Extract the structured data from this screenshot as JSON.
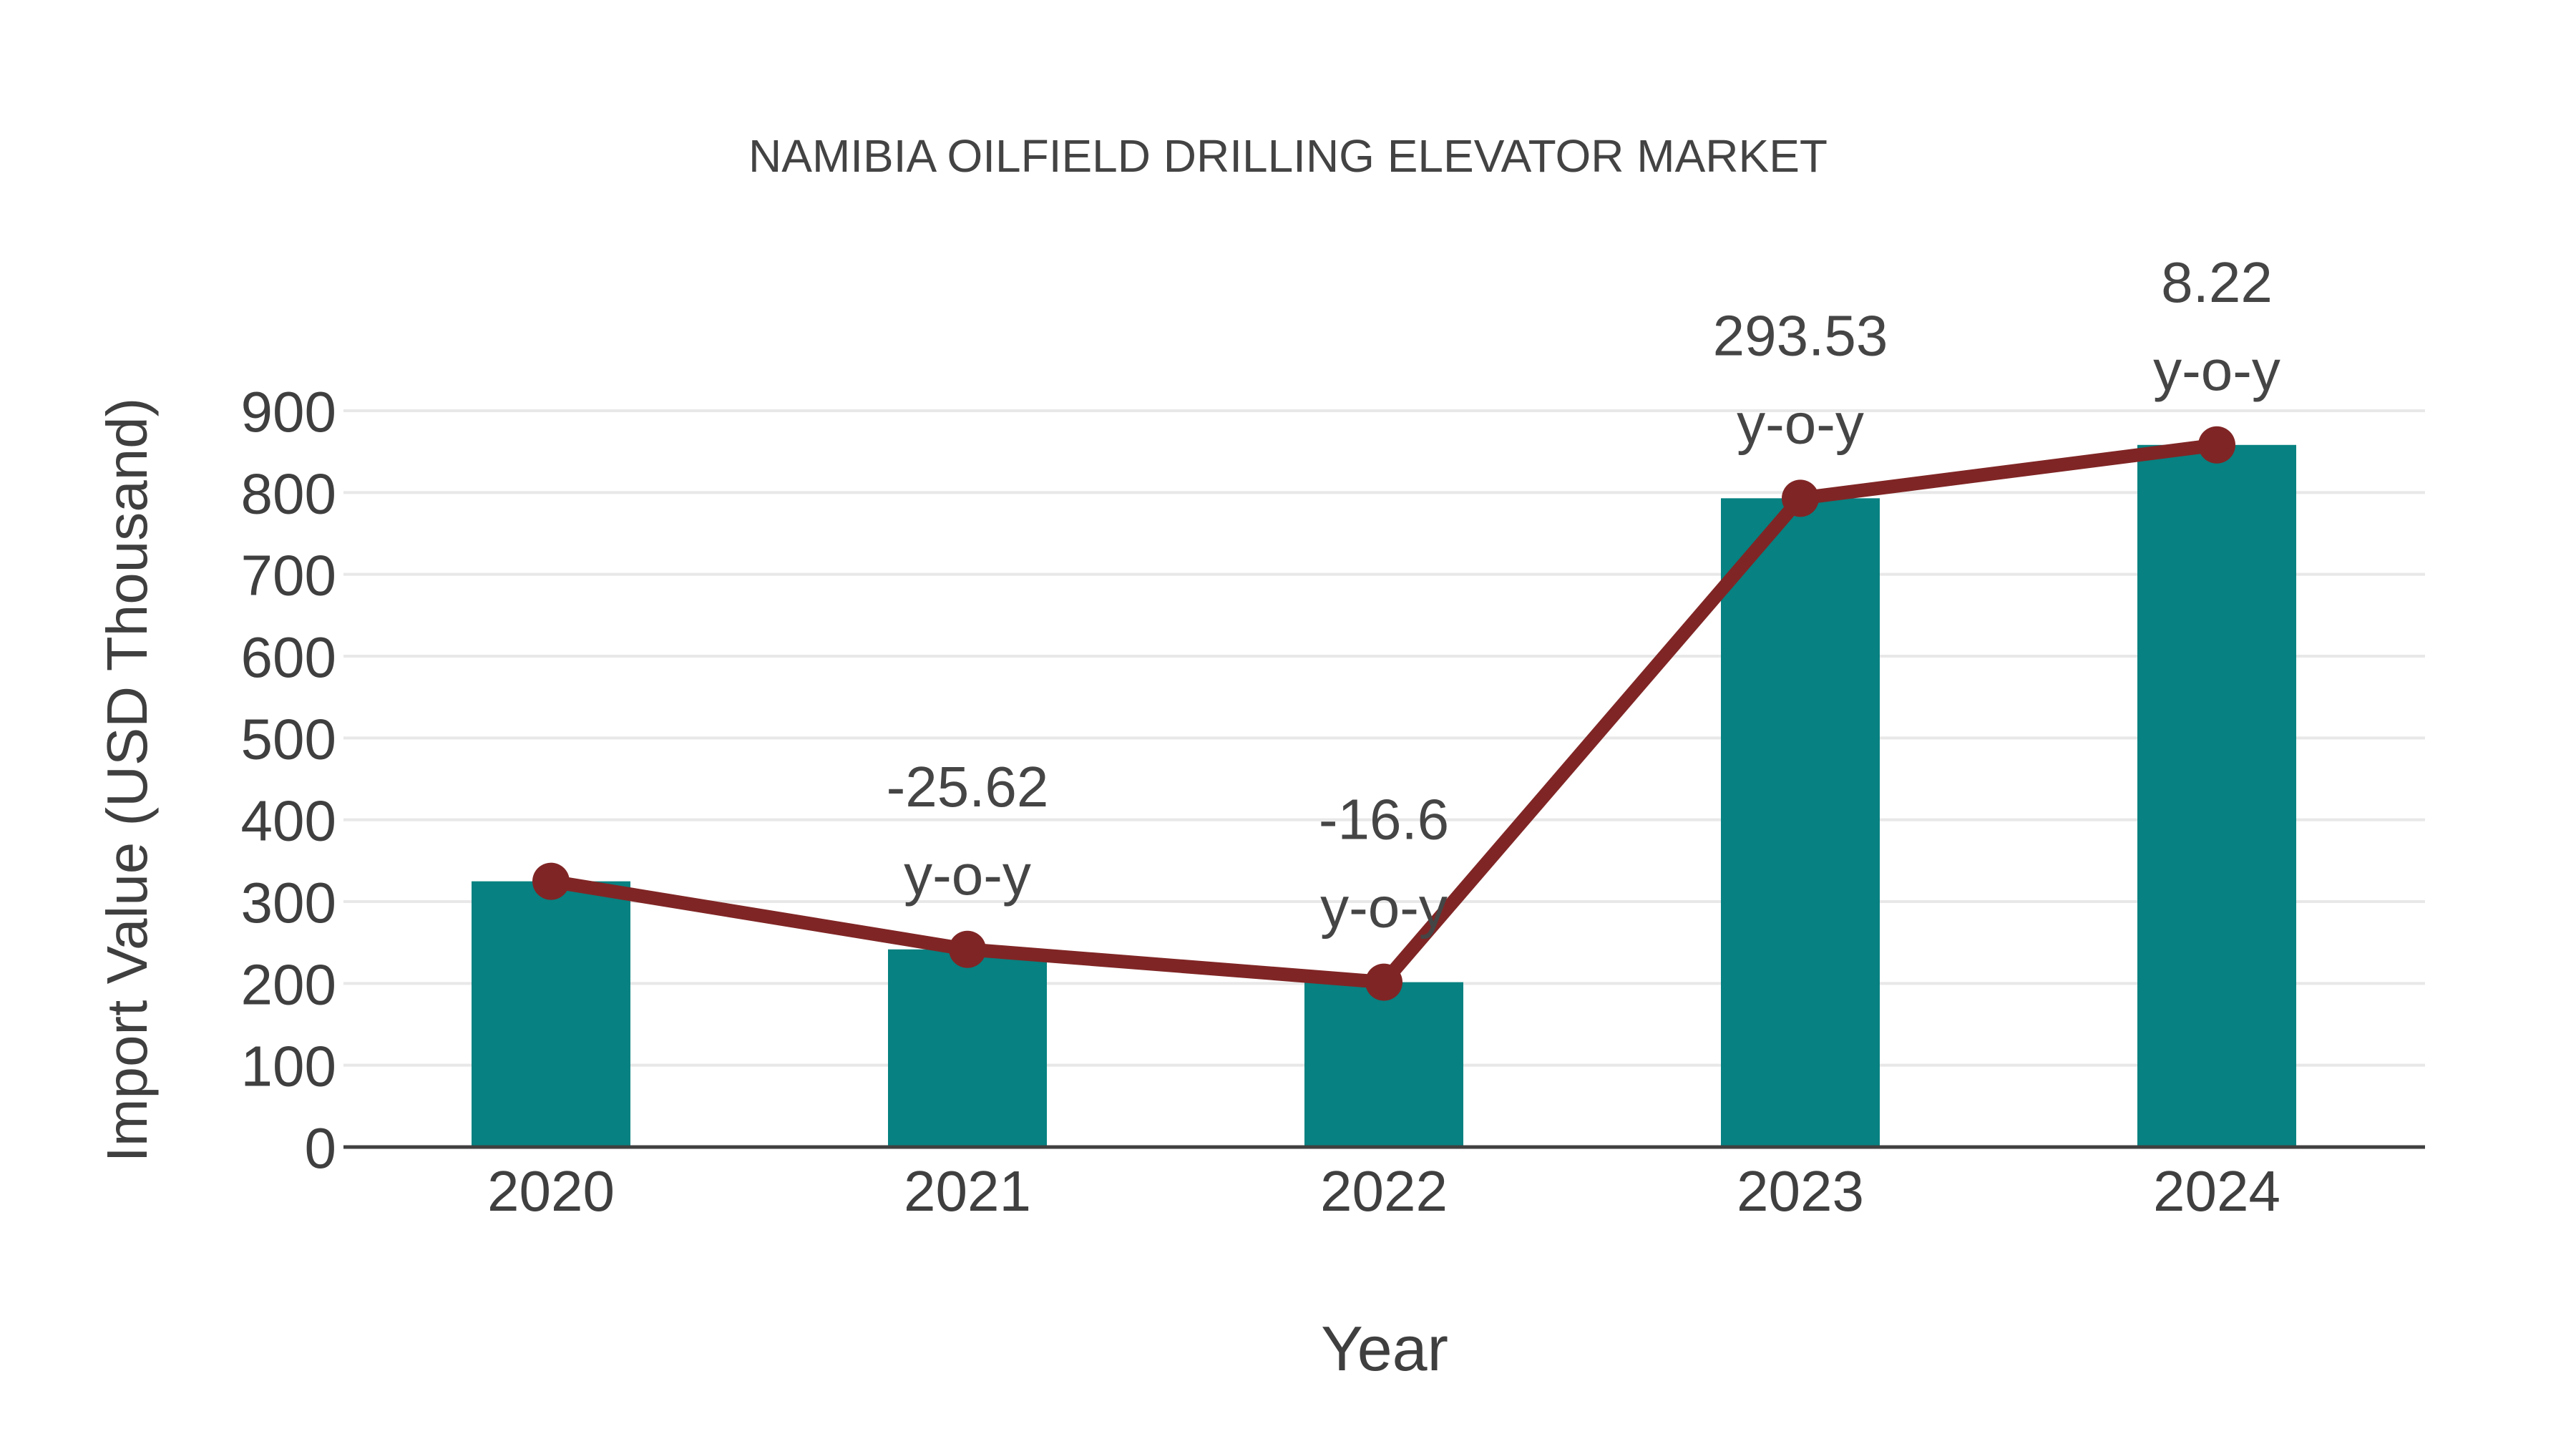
{
  "title": "NAMIBIA OILFIELD DRILLING ELEVATOR MARKET",
  "colors": {
    "bar": "#078181",
    "line": "#802525",
    "marker": "#802525",
    "grid": "#e8e8e8",
    "axis": "#404040",
    "text": "#3f3f3f",
    "background": "#ffffff"
  },
  "chart_data": {
    "type": "bar",
    "title": "NAMIBIA OILFIELD DRILLING ELEVATOR MARKET",
    "xlabel": "Year",
    "ylabel": "Import Value (USD Thousand)",
    "categories": [
      "2020",
      "2021",
      "2022",
      "2023",
      "2024"
    ],
    "series": [
      {
        "name": "Import Value (USD Thousand)",
        "type": "bar",
        "color": "#078181",
        "values": [
          324.8,
          241.6,
          201.5,
          793.0,
          858.2
        ]
      },
      {
        "name": "Import Value trend",
        "type": "line",
        "color": "#802525",
        "values": [
          324.8,
          241.6,
          201.5,
          793.0,
          858.2
        ]
      }
    ],
    "yoy_percent": [
      null,
      -25.62,
      -16.6,
      293.53,
      8.22
    ],
    "annotations": [
      {
        "category": "2021",
        "line1": "-25.62",
        "line2": "y-o-y"
      },
      {
        "category": "2022",
        "line1": "-16.6",
        "line2": "y-o-y"
      },
      {
        "category": "2023",
        "line1": "293.53",
        "line2": "y-o-y"
      },
      {
        "category": "2024",
        "line1": "8.22",
        "line2": "y-o-y"
      }
    ],
    "ylim": [
      0,
      900
    ],
    "yticks": [
      0,
      100,
      200,
      300,
      400,
      500,
      600,
      700,
      800,
      900
    ],
    "grid": "horizontal",
    "legend": "none"
  }
}
